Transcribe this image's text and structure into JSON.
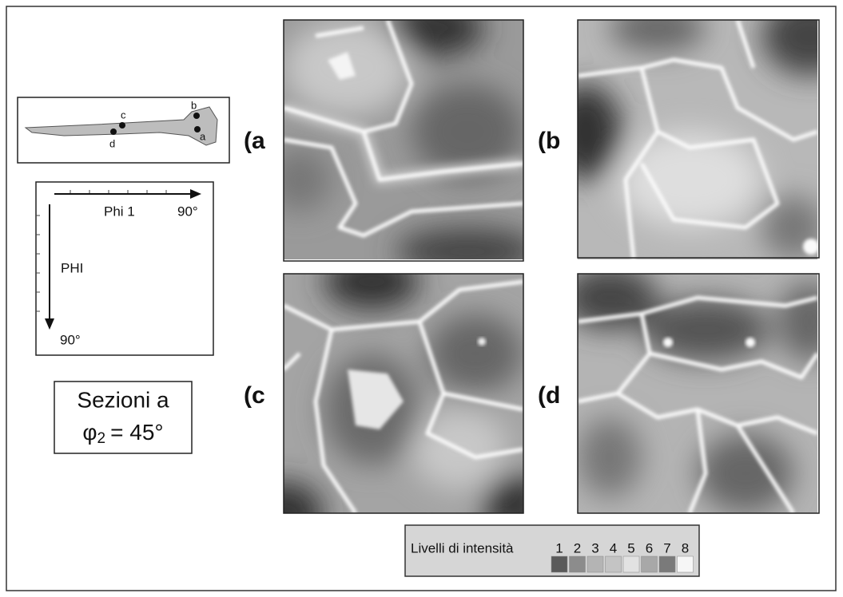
{
  "sample": {
    "points": [
      "a",
      "b",
      "c",
      "d"
    ]
  },
  "axes": {
    "x_label": "Phi 1",
    "x_end": "90°",
    "y_label": "PHI",
    "y_end": "90°"
  },
  "caption": {
    "line1": "Sezioni a",
    "symbol": "φ",
    "subscript": "2",
    "rest": "= 45°"
  },
  "panels": [
    {
      "label": "(a"
    },
    {
      "label": "(b"
    },
    {
      "label": "(c"
    },
    {
      "label": "(d"
    }
  ],
  "legend": {
    "title": "Livelli di intensità",
    "levels": [
      {
        "label": "1",
        "color": "#5a5a5a"
      },
      {
        "label": "2",
        "color": "#8c8c8c"
      },
      {
        "label": "3",
        "color": "#b4b4b4"
      },
      {
        "label": "4",
        "color": "#c4c4c4"
      },
      {
        "label": "5",
        "color": "#e2e2e2"
      },
      {
        "label": "6",
        "color": "#a8a8a8"
      },
      {
        "label": "7",
        "color": "#7a7a7a"
      },
      {
        "label": "8",
        "color": "#f6f6f6"
      }
    ]
  }
}
